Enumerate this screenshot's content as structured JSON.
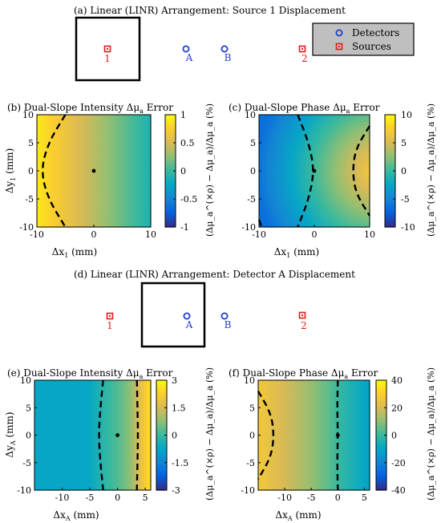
{
  "colors": {
    "source": "#e41a1c",
    "detector": "#1f3fd0",
    "contour": "#000000",
    "legend_bg": "#bfbfbf"
  },
  "sections": [
    {
      "title": "(a) Linear (LINR) Arrangement: Source 1 Displacement",
      "labels": {
        "s1": "1",
        "dA": "A",
        "dB": "B",
        "s2": "2"
      },
      "legend": {
        "detectors": "Detectors",
        "sources": "Sources"
      }
    },
    {
      "title": "(d) Linear (LINR) Arrangement: Detector A Displacement",
      "labels": {
        "s1": "1",
        "dA": "A",
        "dB": "B",
        "s2": "2"
      }
    }
  ],
  "panel_text": {
    "b": {
      "title": "(b) Dual-Slope Intensity Δμ",
      "xlabel": "Δx",
      "xsub": "1",
      "ylabel": "Δy",
      "ysub": "1",
      "cblabel": "(Δμ_a^(×ρ) − Δμ_a)/Δμ_a (%)"
    },
    "c": {
      "title": "(c) Dual-Slope Phase Δμ",
      "xlabel": "Δx",
      "xsub": "1",
      "cblabel": "(Δμ_a^(×ρ) − Δμ_a)/Δμ_a (%)"
    },
    "e": {
      "title": "(e) Dual-Slope Intensity Δμ",
      "xlabel": "Δx",
      "xsub": "A",
      "ylabel": "Δy",
      "ysub": "A",
      "cblabel": "(Δμ_a^(×ρ) − Δμ_a)/Δμ_a (%)"
    },
    "f": {
      "title": "(f) Dual-Slope Phase Δμ",
      "xlabel": "Δx",
      "xsub": "A",
      "cblabel": "(Δμ_a^(×ρ) − Δμ_a)/Δμ_a (%)"
    }
  },
  "chart_data": [
    {
      "id": "b",
      "type": "heatmap",
      "title": "(b) Dual-Slope Intensity Δμa Error",
      "xlabel": "Δx1 (mm)",
      "ylabel": "Δy1 (mm)",
      "xlim": [
        -10,
        10
      ],
      "ylim": [
        -10,
        10
      ],
      "xticks": [
        -10,
        0,
        10
      ],
      "yticks": [
        -10,
        -5,
        0,
        5,
        10
      ],
      "colorbar": {
        "label": "(Δμa(×ρ) − Δμa)/Δμa (%)",
        "lim": [
          -1,
          1
        ],
        "ticks": [
          1,
          0.5,
          0,
          -0.5,
          -1
        ]
      },
      "field": {
        "kind": "linear_x",
        "left": 0.9,
        "right": -0.12
      },
      "contours": [
        {
          "level": 0.5,
          "points": [
            [
              -5,
              10
            ],
            [
              -8,
              5
            ],
            [
              -9.3,
              0
            ],
            [
              -8,
              -5
            ],
            [
              -5,
              -10
            ]
          ]
        }
      ],
      "marker": [
        0,
        0
      ]
    },
    {
      "id": "c",
      "type": "heatmap",
      "title": "(c) Dual-Slope Phase Δμa Error",
      "xlabel": "Δx1 (mm)",
      "ylabel": "",
      "xlim": [
        -10,
        10
      ],
      "ylim": [
        -10,
        10
      ],
      "xticks": [
        -10,
        0,
        10
      ],
      "yticks": [
        -10,
        -5,
        0,
        5,
        10
      ],
      "colorbar": {
        "label": "(Δμa(×ρ) − Δμa)/Δμa (%)",
        "lim": [
          -10,
          10
        ],
        "ticks": [
          10,
          5,
          0,
          -5,
          -10
        ]
      },
      "field": {
        "kind": "radial",
        "cx": 11.5,
        "cy": 0,
        "inner": 7.5,
        "outer": -6.5,
        "rmax": 22
      },
      "contours": [
        {
          "level": 0,
          "points": [
            [
              -3,
              10
            ],
            [
              -1,
              5
            ],
            [
              0,
              0
            ],
            [
              -1,
              -5
            ],
            [
              -3,
              -10
            ]
          ]
        },
        {
          "level": 5,
          "points": [
            [
              10,
              8
            ],
            [
              7.5,
              4
            ],
            [
              6.9,
              0
            ],
            [
              7.5,
              -4
            ],
            [
              10,
              -8
            ]
          ]
        },
        {
          "level": -5,
          "points": [
            [
              -10,
              -8.7
            ],
            [
              -9.5,
              -10
            ]
          ]
        }
      ],
      "marker": [
        0,
        0
      ]
    },
    {
      "id": "e",
      "type": "heatmap",
      "title": "(e) Dual-Slope Intensity Δμa Error",
      "xlabel": "ΔxA (mm)",
      "ylabel": "ΔyA (mm)",
      "xlim": [
        -15,
        6
      ],
      "ylim": [
        -10,
        10
      ],
      "xticks": [
        -10,
        -5,
        0,
        5
      ],
      "yticks": [
        -10,
        -5,
        0,
        5,
        10
      ],
      "colorbar": {
        "label": "(Δμa(×ρ) − Δμa)/Δμa (%)",
        "lim": [
          -3,
          3
        ],
        "ticks": [
          3,
          1.5,
          0,
          -1.5,
          -3
        ]
      },
      "field": {
        "kind": "piecewise_x",
        "stops": [
          [
            -15,
            -0.75
          ],
          [
            -5,
            -0.7
          ],
          [
            -2.5,
            -0.2
          ],
          [
            0,
            0.2
          ],
          [
            2.5,
            0.8
          ],
          [
            4,
            1.7
          ],
          [
            6,
            2.6
          ]
        ]
      },
      "contours": [
        {
          "level": 0,
          "points": [
            [
              -2.6,
              10
            ],
            [
              -3.1,
              5
            ],
            [
              -3.4,
              0
            ],
            [
              -3.1,
              -5
            ],
            [
              -2.6,
              -10
            ]
          ]
        },
        {
          "level": 1.5,
          "points": [
            [
              3.5,
              10
            ],
            [
              3.6,
              5
            ],
            [
              3.7,
              0
            ],
            [
              3.6,
              -5
            ],
            [
              3.5,
              -10
            ]
          ]
        }
      ],
      "marker": [
        0,
        0
      ]
    },
    {
      "id": "f",
      "type": "heatmap",
      "title": "(f) Dual-Slope Phase Δμa Error",
      "xlabel": "ΔxA (mm)",
      "ylabel": "",
      "xlim": [
        -15,
        6
      ],
      "ylim": [
        -10,
        10
      ],
      "xticks": [
        -10,
        -5,
        0,
        5
      ],
      "yticks": [
        -10,
        -5,
        0,
        5,
        10
      ],
      "colorbar": {
        "label": "(Δμa(×ρ) − Δμa)/Δμa (%)",
        "lim": [
          -40,
          40
        ],
        "ticks": [
          40,
          20,
          0,
          -20,
          -40
        ]
      },
      "field": {
        "kind": "piecewise_x",
        "stops": [
          [
            -15,
            28
          ],
          [
            -13,
            24
          ],
          [
            -9,
            18
          ],
          [
            -5,
            11
          ],
          [
            -2,
            5
          ],
          [
            0,
            0
          ],
          [
            3,
            -6
          ],
          [
            6,
            -11
          ]
        ]
      },
      "contours": [
        {
          "level": 20,
          "points": [
            [
              -15,
              8
            ],
            [
              -12.6,
              4
            ],
            [
              -12,
              0
            ],
            [
              -12.6,
              -4
            ],
            [
              -15,
              -8
            ]
          ]
        },
        {
          "level": 0,
          "points": [
            [
              0,
              10
            ],
            [
              -0.1,
              5
            ],
            [
              0,
              0
            ],
            [
              -0.1,
              -5
            ],
            [
              0,
              -10
            ]
          ]
        }
      ],
      "marker": [
        0,
        0
      ]
    }
  ]
}
